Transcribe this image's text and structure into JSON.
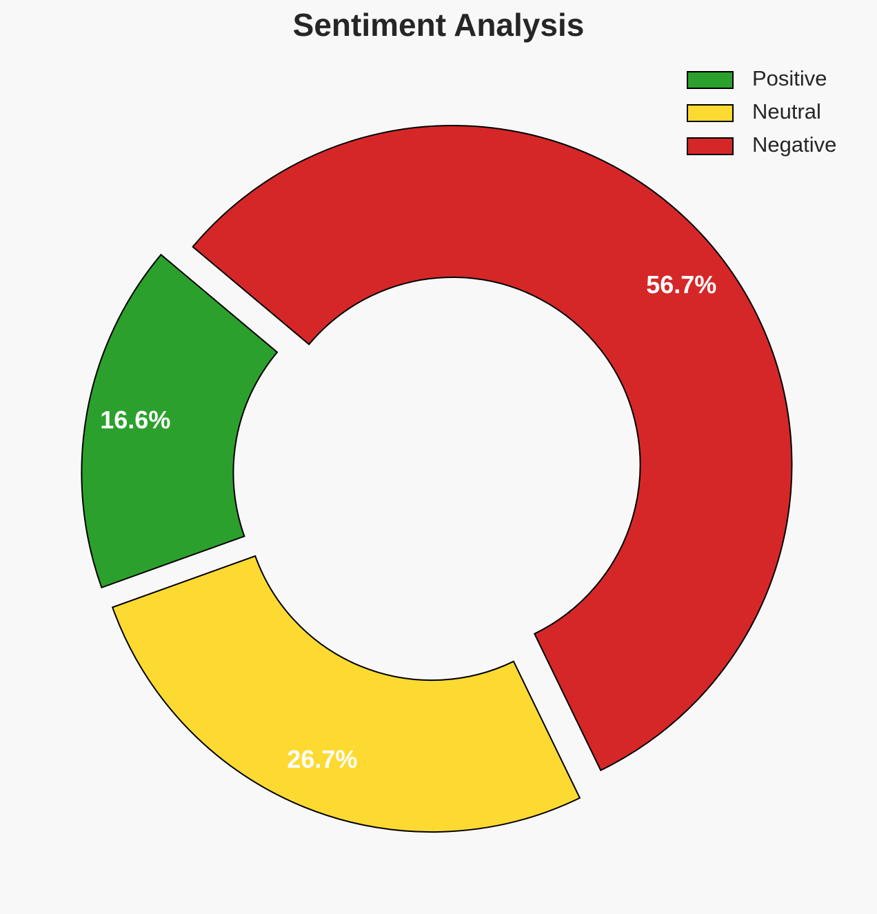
{
  "chart_data": {
    "type": "donut",
    "title": "Sentiment Analysis",
    "categories": [
      "Positive",
      "Neutral",
      "Negative"
    ],
    "values": [
      16.6,
      26.7,
      56.7
    ],
    "value_labels": [
      "16.6%",
      "26.7%",
      "56.7%"
    ],
    "colors": [
      "#2ca02c",
      "#fdda31",
      "#d62728"
    ],
    "legend": "upper right"
  }
}
